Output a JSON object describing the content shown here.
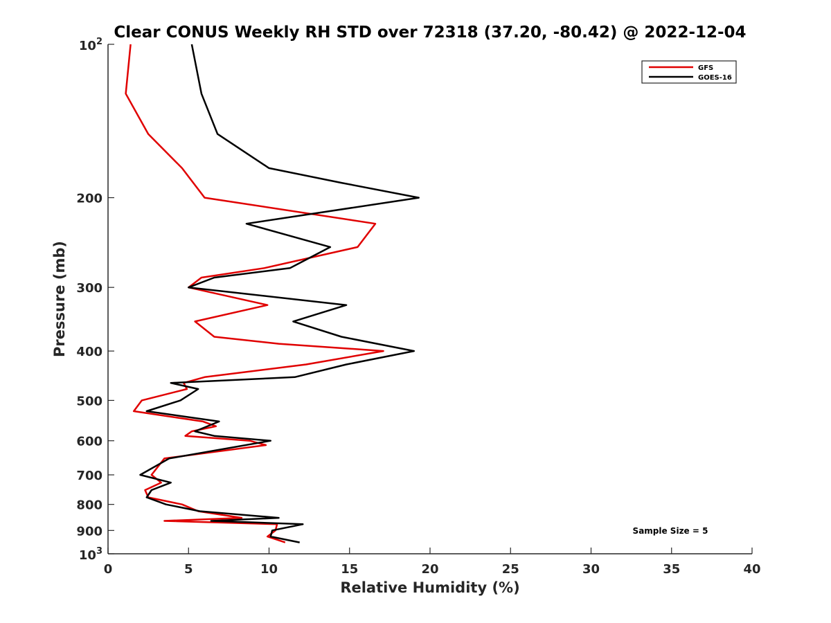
{
  "chart_data": {
    "type": "line",
    "title": "Clear CONUS Weekly RH STD over 72318 (37.20, -80.42) @ 2022-12-04",
    "xlabel": "Relative Humidity (%)",
    "ylabel": "Pressure (mb)",
    "xlim": [
      0,
      40
    ],
    "ylim": [
      100,
      1000
    ],
    "y_scale": "log",
    "y_reversed": true,
    "x_ticks": [
      0,
      5,
      10,
      15,
      20,
      25,
      30,
      35,
      40
    ],
    "y_ticks": [
      200,
      300,
      400,
      500,
      600,
      700,
      800,
      900
    ],
    "y_exp_ticks": [
      {
        "value": 100,
        "base": "10",
        "exp": "2"
      },
      {
        "value": 1000,
        "base": "10",
        "exp": "3"
      }
    ],
    "grid": false,
    "legend_position": "top-right",
    "annotation": "Sample Size = 5",
    "series": [
      {
        "name": "GFS",
        "color": "#e00000",
        "points": [
          [
            1.4,
            100
          ],
          [
            1.1,
            125
          ],
          [
            2.5,
            150
          ],
          [
            4.6,
            175
          ],
          [
            6.0,
            200
          ],
          [
            16.6,
            225
          ],
          [
            15.5,
            250
          ],
          [
            9.7,
            275
          ],
          [
            5.8,
            287
          ],
          [
            5.0,
            300
          ],
          [
            9.9,
            325
          ],
          [
            5.4,
            350
          ],
          [
            6.6,
            375
          ],
          [
            10.6,
            387
          ],
          [
            17.1,
            400
          ],
          [
            12.3,
            425
          ],
          [
            6.0,
            450
          ],
          [
            4.7,
            462
          ],
          [
            4.9,
            475
          ],
          [
            2.1,
            500
          ],
          [
            1.6,
            525
          ],
          [
            5.9,
            550
          ],
          [
            6.7,
            562
          ],
          [
            5.2,
            575
          ],
          [
            4.8,
            587
          ],
          [
            8.8,
            600
          ],
          [
            9.8,
            612
          ],
          [
            3.5,
            650
          ],
          [
            2.7,
            700
          ],
          [
            3.3,
            725
          ],
          [
            2.3,
            750
          ],
          [
            2.5,
            775
          ],
          [
            4.6,
            800
          ],
          [
            5.6,
            825
          ],
          [
            8.3,
            850
          ],
          [
            3.5,
            862
          ],
          [
            10.5,
            875
          ],
          [
            10.4,
            900
          ],
          [
            9.9,
            925
          ],
          [
            11.0,
            950
          ]
        ]
      },
      {
        "name": "GOES-16",
        "color": "#000000",
        "points": [
          [
            5.2,
            100
          ],
          [
            5.8,
            125
          ],
          [
            6.8,
            150
          ],
          [
            10.0,
            175
          ],
          [
            14.5,
            187
          ],
          [
            19.3,
            200
          ],
          [
            8.6,
            225
          ],
          [
            13.8,
            250
          ],
          [
            11.3,
            275
          ],
          [
            6.6,
            287
          ],
          [
            5.0,
            300
          ],
          [
            14.8,
            325
          ],
          [
            11.5,
            350
          ],
          [
            14.5,
            375
          ],
          [
            19.0,
            400
          ],
          [
            14.8,
            425
          ],
          [
            11.6,
            450
          ],
          [
            3.9,
            462
          ],
          [
            5.6,
            475
          ],
          [
            4.5,
            500
          ],
          [
            2.4,
            525
          ],
          [
            6.9,
            550
          ],
          [
            5.4,
            575
          ],
          [
            6.6,
            587
          ],
          [
            10.1,
            600
          ],
          [
            3.8,
            650
          ],
          [
            2.0,
            700
          ],
          [
            3.9,
            725
          ],
          [
            2.7,
            750
          ],
          [
            2.4,
            775
          ],
          [
            3.6,
            800
          ],
          [
            5.7,
            825
          ],
          [
            10.6,
            850
          ],
          [
            6.4,
            862
          ],
          [
            12.1,
            875
          ],
          [
            10.2,
            900
          ],
          [
            10.1,
            925
          ],
          [
            11.9,
            950
          ]
        ]
      }
    ]
  }
}
